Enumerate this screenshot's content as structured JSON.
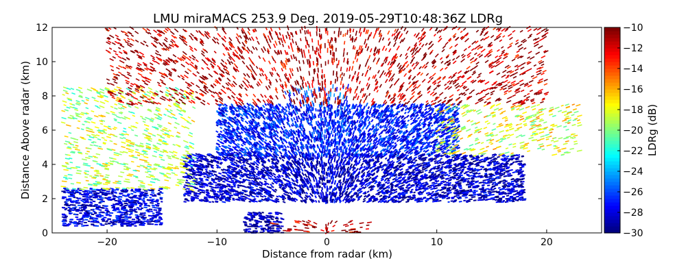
{
  "chart_data": {
    "type": "heatmap",
    "title": "LMU miraMACS 253.9 Deg. 2019-05-29T10:48:36Z  LDRg",
    "xlabel": "Distance from radar (km)",
    "ylabel": "Distance Above radar  (km)",
    "xlim": [
      -25,
      25
    ],
    "ylim": [
      0,
      12
    ],
    "x_ticks": [
      -20,
      -10,
      0,
      10,
      20
    ],
    "x_tick_labels": [
      "−20",
      "−10",
      "0",
      "10",
      "20"
    ],
    "y_ticks": [
      0,
      2,
      4,
      6,
      8,
      10,
      12
    ],
    "y_tick_labels": [
      "0",
      "2",
      "4",
      "6",
      "8",
      "10",
      "12"
    ],
    "colorbar": {
      "label": "LDRg (dB)",
      "range": [
        -30,
        -10
      ],
      "ticks": [
        -30,
        -28,
        -26,
        -24,
        -22,
        -20,
        -18,
        -16,
        -14,
        -12,
        -10
      ],
      "tick_labels": [
        "−30",
        "−28",
        "−26",
        "−24",
        "−22",
        "−20",
        "−18",
        "−16",
        "−14",
        "−12",
        "−10"
      ],
      "colormap": "jet"
    },
    "grid": false,
    "regions": [
      {
        "x": [
          -13,
          18
        ],
        "y": [
          1.8,
          4.6
        ],
        "ldr": -28.5
      },
      {
        "x": [
          -10,
          12
        ],
        "y": [
          4.5,
          7.5
        ],
        "ldr": -27
      },
      {
        "x": [
          -4,
          2
        ],
        "y": [
          7.5,
          8.6
        ],
        "ldr": -26
      },
      {
        "x": [
          -24,
          -15
        ],
        "y": [
          0.4,
          2.6
        ],
        "ldr": -28
      },
      {
        "x": [
          -7.5,
          -4
        ],
        "y": [
          0,
          1.2
        ],
        "ldr": -29
      },
      {
        "x": [
          -5,
          4
        ],
        "y": [
          0,
          0.7
        ],
        "ldr": -11
      },
      {
        "x": [
          -24,
          -12
        ],
        "y": [
          2.5,
          8.5
        ],
        "ldr": -19
      },
      {
        "x": [
          10,
          23
        ],
        "y": [
          4.5,
          7.5
        ],
        "ldr": -18
      },
      {
        "x": [
          -20,
          20
        ],
        "y": [
          7.5,
          12
        ],
        "ldr": -11
      }
    ]
  }
}
